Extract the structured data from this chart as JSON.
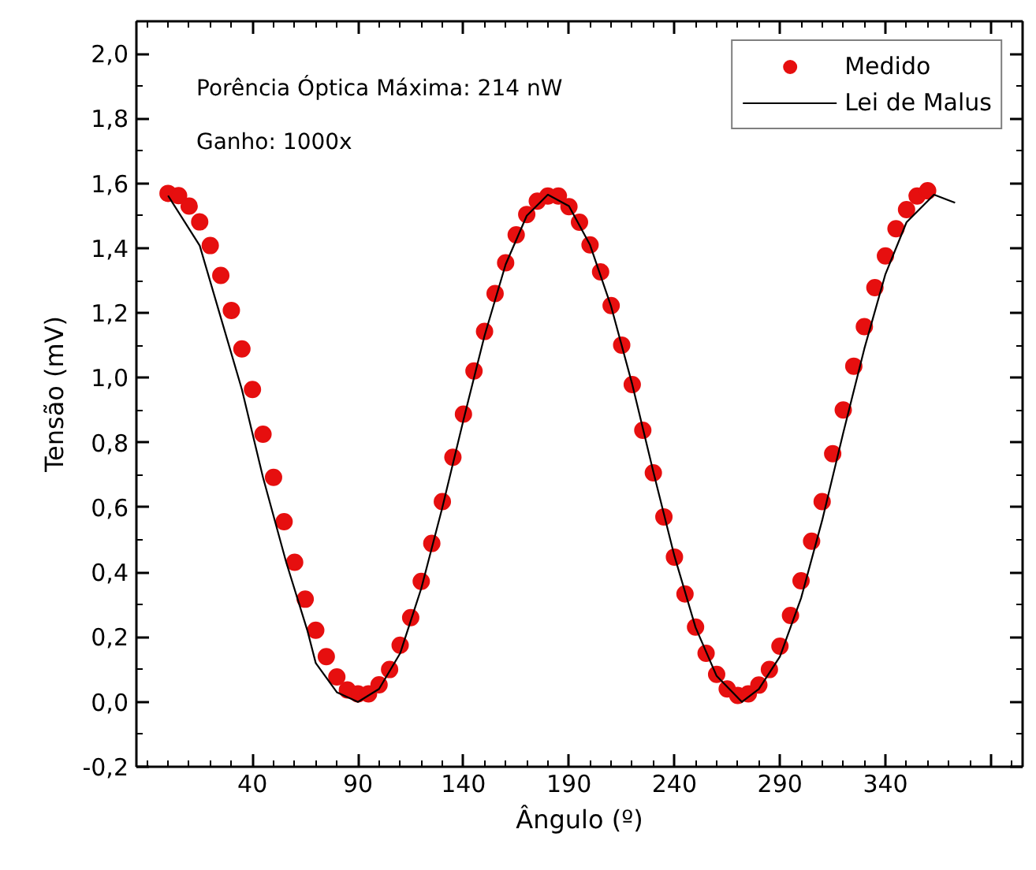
{
  "chart_data": {
    "type": "scatter",
    "xlabel": "Ângulo (º)",
    "ylabel": "Tensão (mV)",
    "annotations": [
      "Porência Óptica Máxima: 214 nW",
      "Ganho: 1000x"
    ],
    "x": [
      0,
      5,
      10,
      15,
      20,
      25,
      30,
      35,
      40,
      45,
      50,
      55,
      60,
      65,
      70,
      75,
      80,
      85,
      90,
      95,
      100,
      105,
      110,
      115,
      120,
      125,
      130,
      135,
      140,
      145,
      150,
      155,
      160,
      165,
      170,
      175,
      180,
      185,
      190,
      195,
      200,
      205,
      210,
      215,
      220,
      225,
      230,
      235,
      240,
      245,
      250,
      255,
      260,
      265,
      270,
      275,
      280,
      285,
      290,
      295,
      300,
      305,
      310,
      315,
      320,
      325,
      330,
      335,
      340,
      345,
      350,
      355,
      360
    ],
    "series": [
      {
        "name": "Medido",
        "color": "#e60f0f",
        "marker": "circle",
        "values": [
          1.569,
          1.562,
          1.53,
          1.481,
          1.408,
          1.316,
          1.208,
          1.089,
          0.964,
          0.826,
          0.693,
          0.556,
          0.431,
          0.317,
          0.221,
          0.14,
          0.077,
          0.037,
          0.025,
          0.025,
          0.053,
          0.1,
          0.175,
          0.26,
          0.372,
          0.489,
          0.618,
          0.755,
          0.888,
          1.021,
          1.143,
          1.26,
          1.355,
          1.441,
          1.504,
          1.545,
          1.561,
          1.561,
          1.528,
          1.48,
          1.41,
          1.327,
          1.223,
          1.101,
          0.979,
          0.838,
          0.707,
          0.571,
          0.447,
          0.333,
          0.231,
          0.15,
          0.085,
          0.04,
          0.02,
          0.025,
          0.052,
          0.1,
          0.172,
          0.267,
          0.374,
          0.496,
          0.618,
          0.766,
          0.901,
          1.036,
          1.158,
          1.278,
          1.376,
          1.46,
          1.519,
          1.561,
          1.577
        ]
      },
      {
        "name": "Lei de Malus",
        "type": "line",
        "color": "#000000",
        "marker": "none",
        "line_style": "solid",
        "x": [
          0,
          15,
          24,
          35,
          45,
          56,
          66,
          70,
          80,
          90,
          100,
          110,
          120,
          130,
          140,
          150,
          160,
          170,
          180,
          190,
          200,
          210,
          220,
          230,
          240,
          250,
          260,
          272,
          280,
          290,
          300,
          310,
          320,
          330,
          340,
          350,
          363,
          373
        ],
        "values": [
          1.562,
          1.408,
          1.208,
          0.964,
          0.693,
          0.431,
          0.221,
          0.12,
          0.03,
          0.0,
          0.04,
          0.15,
          0.35,
          0.6,
          0.87,
          1.13,
          1.35,
          1.5,
          1.565,
          1.53,
          1.41,
          1.22,
          0.98,
          0.71,
          0.45,
          0.23,
          0.08,
          0.0,
          0.04,
          0.14,
          0.32,
          0.56,
          0.83,
          1.09,
          1.32,
          1.48,
          1.565,
          1.54
        ]
      }
    ],
    "xlim": [
      -15,
      405
    ],
    "ylim": [
      -0.2,
      2.1
    ],
    "xticks": [
      40,
      90,
      140,
      190,
      240,
      290,
      340,
      {
        "value": 390,
        "label": null
      }
    ],
    "yticks": [
      {
        "value": -0.2,
        "label": "-0,2"
      },
      {
        "value": 0.0,
        "label": "0,0"
      },
      {
        "value": 0.2,
        "label": "0,2"
      },
      {
        "value": 0.4,
        "label": "0,4"
      },
      {
        "value": 0.6,
        "label": "0,6"
      },
      {
        "value": 0.8,
        "label": "0,8"
      },
      {
        "value": 1.0,
        "label": "1,0"
      },
      {
        "value": 1.2,
        "label": "1,2"
      },
      {
        "value": 1.4,
        "label": "1,4"
      },
      {
        "value": 1.6,
        "label": "1,6"
      },
      {
        "value": 1.8,
        "label": "1,8"
      },
      {
        "value": 2.0,
        "label": "2,0"
      }
    ],
    "grid": false,
    "legend": "top right"
  }
}
